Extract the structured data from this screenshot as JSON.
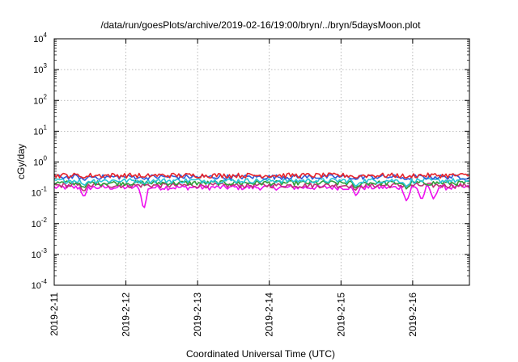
{
  "chart_data": {
    "type": "line",
    "title": "/data/run/goesPlots/archive/2019-02-16/19:00/bryn/../bryn/5daysMoon.plot",
    "xlabel": "Coordinated Universal Time (UTC)",
    "ylabel": "cGy/day",
    "yscale": "log",
    "ylim": [
      0.0001,
      10000
    ],
    "y_ticks": [
      {
        "value": 0.0001,
        "base": "10",
        "exp": "-4"
      },
      {
        "value": 0.001,
        "base": "10",
        "exp": "-3"
      },
      {
        "value": 0.01,
        "base": "10",
        "exp": "-2"
      },
      {
        "value": 0.1,
        "base": "10",
        "exp": "-1"
      },
      {
        "value": 1,
        "base": "10",
        "exp": "0"
      },
      {
        "value": 10,
        "base": "10",
        "exp": "1"
      },
      {
        "value": 100,
        "base": "10",
        "exp": "2"
      },
      {
        "value": 1000,
        "base": "10",
        "exp": "3"
      },
      {
        "value": 10000,
        "base": "10",
        "exp": "4"
      }
    ],
    "x_range": [
      "2019-02-11",
      "2019-02-16 19:00"
    ],
    "x_ticks": [
      "2019-2-11",
      "2019-2-12",
      "2019-2-13",
      "2019-2-14",
      "2019-2-15",
      "2019-2-16"
    ],
    "grid": true,
    "legend": "none",
    "series": [
      {
        "color": "#e6242b",
        "baseline": 0.37,
        "dips": [
          [
            "2019-02-11 10:00",
            0.3
          ],
          [
            "2019-02-12 06:00",
            0.31
          ],
          [
            "2019-02-15 05:00",
            0.3
          ],
          [
            "2019-02-15 22:00",
            0.3
          ]
        ]
      },
      {
        "color": "#2f5bd8",
        "baseline": 0.33,
        "dips": [
          [
            "2019-02-11 10:00",
            0.25
          ],
          [
            "2019-02-12 06:00",
            0.28
          ],
          [
            "2019-02-15 05:00",
            0.27
          ],
          [
            "2019-02-15 22:00",
            0.26
          ]
        ]
      },
      {
        "color": "#29c4d6",
        "baseline": 0.25,
        "dips": [
          [
            "2019-02-11 10:00",
            0.17
          ],
          [
            "2019-02-12 06:00",
            0.2
          ],
          [
            "2019-02-15 05:00",
            0.16
          ],
          [
            "2019-02-15 22:00",
            0.15
          ]
        ]
      },
      {
        "color": "#2f9e3a",
        "baseline": 0.21,
        "dips": [
          [
            "2019-02-11 10:00",
            0.14
          ],
          [
            "2019-02-15 05:00",
            0.14
          ],
          [
            "2019-02-15 22:00",
            0.13
          ]
        ]
      },
      {
        "color": "#c0307a",
        "baseline": 0.175,
        "dips": [
          [
            "2019-02-11 10:00",
            0.11
          ],
          [
            "2019-02-15 05:00",
            0.12
          ]
        ]
      },
      {
        "color": "#ee10ee",
        "baseline": 0.15,
        "dips": [
          [
            "2019-02-11 10:00",
            0.07
          ],
          [
            "2019-02-12 06:00",
            0.026
          ],
          [
            "2019-02-15 05:00",
            0.08
          ],
          [
            "2019-02-15 22:00",
            0.05
          ],
          [
            "2019-02-16 03:00",
            0.055
          ],
          [
            "2019-02-16 07:00",
            0.06
          ]
        ]
      }
    ]
  }
}
